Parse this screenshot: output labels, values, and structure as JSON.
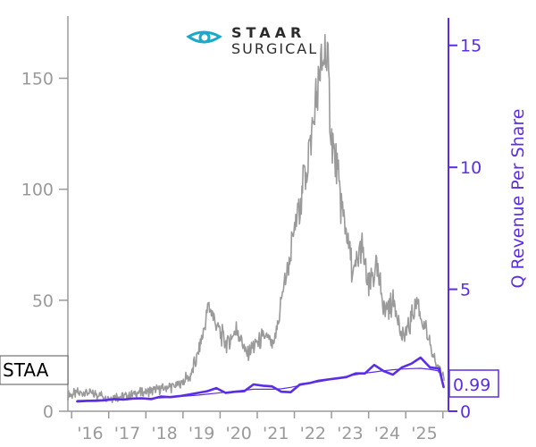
{
  "logo": {
    "line1": "STAAR",
    "line2": "SURGICAL",
    "accent_color": "#1aa9c9"
  },
  "ticker": "STAAR",
  "ticker_display": "STAA",
  "last_value": "0.99",
  "colors": {
    "price": "#9a9a9a",
    "revenue": "#5b2ee6",
    "left_axis": "#9a9a9a",
    "right_axis": "#5b2ee6"
  },
  "chart_data": {
    "type": "line",
    "x_tick_labels": [
      "'16",
      "'17",
      "'18",
      "'19",
      "'20",
      "'21",
      "'22",
      "'23",
      "'24",
      "'25"
    ],
    "left_axis": {
      "ylim": [
        0,
        178
      ],
      "ticks": [
        0,
        50,
        100,
        150
      ],
      "tick_labels": [
        "0",
        "50",
        "100",
        "150"
      ]
    },
    "right_axis": {
      "ylim": [
        0,
        16.2
      ],
      "ticks": [
        0,
        5,
        10,
        15
      ],
      "tick_labels": [
        "0",
        "5",
        "10",
        "15"
      ],
      "label": "Q Revenue Per Share"
    },
    "series": [
      {
        "axis": "left",
        "style": "jagged",
        "x": [
          2014.9,
          2015.3,
          2015.6,
          2016.0,
          2016.5,
          2017.0,
          2017.5,
          2017.9,
          2018.2,
          2018.45,
          2018.7,
          2018.95,
          2019.2,
          2019.45,
          2019.7,
          2019.95,
          2020.2,
          2020.45,
          2020.7,
          2020.95,
          2021.2,
          2021.4,
          2021.6,
          2021.75,
          2021.85,
          2022.0,
          2022.2,
          2022.4,
          2022.6,
          2022.8,
          2023.0,
          2023.2,
          2023.45,
          2023.7,
          2023.9,
          2024.1,
          2024.3,
          2024.5,
          2024.7,
          2024.85,
          2025.05
        ],
        "values": [
          7,
          9,
          8,
          6,
          7,
          9,
          10,
          12,
          16,
          28,
          48,
          37,
          30,
          37,
          26,
          30,
          34,
          29,
          55,
          75,
          100,
          118,
          140,
          158,
          163,
          125,
          100,
          80,
          60,
          75,
          55,
          65,
          45,
          50,
          33,
          38,
          50,
          38,
          27,
          20,
          16
        ]
      },
      {
        "axis": "right",
        "style": "smooth",
        "x": [
          2015.15,
          2015.4,
          2015.65,
          2015.9,
          2016.15,
          2016.4,
          2016.65,
          2016.9,
          2017.15,
          2017.4,
          2017.65,
          2017.9,
          2018.15,
          2018.4,
          2018.65,
          2018.9,
          2019.15,
          2019.4,
          2019.65,
          2019.9,
          2020.15,
          2020.4,
          2020.65,
          2020.9,
          2021.15,
          2021.4,
          2021.65,
          2021.9,
          2022.15,
          2022.4,
          2022.65,
          2022.9,
          2023.15,
          2023.4,
          2023.65,
          2023.9,
          2024.15,
          2024.4,
          2024.65,
          2024.9
        ],
        "values": [
          0.44,
          0.45,
          0.46,
          0.47,
          0.48,
          0.49,
          0.5,
          0.51,
          0.53,
          0.55,
          0.57,
          0.6,
          0.63,
          0.66,
          0.7,
          0.74,
          0.78,
          0.82,
          0.86,
          0.9,
          0.9,
          0.9,
          0.92,
          0.98,
          1.06,
          1.14,
          1.21,
          1.28,
          1.35,
          1.43,
          1.5,
          1.56,
          1.61,
          1.66,
          1.7,
          1.73,
          1.75,
          1.76,
          1.72,
          1.65
        ]
      },
      {
        "axis": "right",
        "style": "straight",
        "x": [
          2015.15,
          2015.4,
          2015.65,
          2015.9,
          2016.15,
          2016.4,
          2016.65,
          2016.9,
          2017.15,
          2017.4,
          2017.65,
          2017.9,
          2018.15,
          2018.4,
          2018.65,
          2018.9,
          2019.15,
          2019.4,
          2019.65,
          2019.9,
          2020.15,
          2020.4,
          2020.65,
          2020.9,
          2021.15,
          2021.4,
          2021.65,
          2021.9,
          2022.15,
          2022.4,
          2022.65,
          2022.9,
          2023.15,
          2023.4,
          2023.65,
          2023.9,
          2024.15,
          2024.4,
          2024.65,
          2024.9
        ],
        "values": [
          0.4,
          0.42,
          0.43,
          0.45,
          0.5,
          0.48,
          0.52,
          0.53,
          0.5,
          0.6,
          0.58,
          0.62,
          0.68,
          0.75,
          0.82,
          0.95,
          0.75,
          0.8,
          0.82,
          1.1,
          1.05,
          1.02,
          0.8,
          0.78,
          1.1,
          1.15,
          1.25,
          1.3,
          1.35,
          1.4,
          1.55,
          1.55,
          1.9,
          1.65,
          1.5,
          1.8,
          1.95,
          2.2,
          1.8,
          1.75
        ]
      }
    ]
  }
}
